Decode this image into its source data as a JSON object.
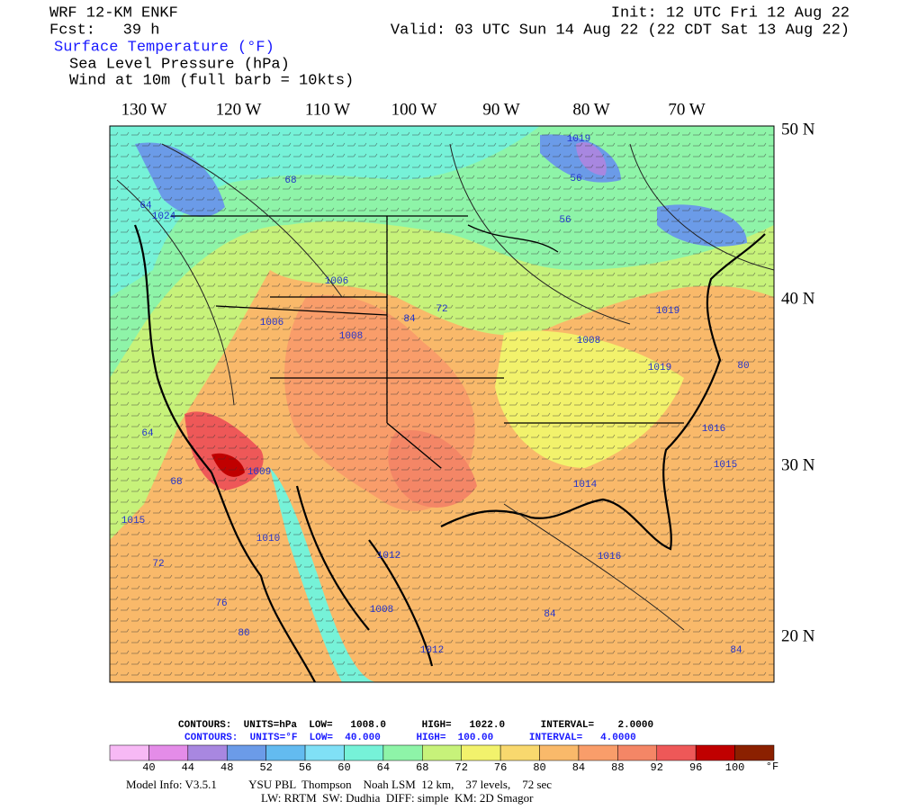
{
  "header": {
    "model": "WRF 12-KM ENKF",
    "forecast": "Fcst:   39 h",
    "init": "Init: 12 UTC Fri 12 Aug 22",
    "valid": "Valid: 03 UTC Sun 14 Aug 22 (22 CDT Sat 13 Aug 22)",
    "fields": [
      "Surface Temperature (°F)",
      "Sea Level Pressure (hPa)",
      "Wind at 10m (full barb = 10kts)"
    ]
  },
  "map": {
    "longitude_labels": [
      "130 W",
      "120 W",
      "110 W",
      "100 W",
      "90 W",
      "80 W",
      "70 W"
    ],
    "latitude_labels": [
      "50 N",
      "40 N",
      "30 N",
      "20 N"
    ],
    "labels": [
      "68",
      "64",
      "1024",
      "1006",
      "1006",
      "1008",
      "1008",
      "1019",
      "1019",
      "1016",
      "1015",
      "1014",
      "1016",
      "1012",
      "1008",
      "1012",
      "1015",
      "1009",
      "1010",
      "80",
      "76",
      "72",
      "68",
      "64",
      "84",
      "84",
      "56",
      "56",
      "1019",
      "84",
      "72",
      "80"
    ]
  },
  "contours": {
    "pressure": "CONTOURS:  UNITS=hPa  LOW=   1008.0      HIGH=   1022.0      INTERVAL=    2.0000",
    "temperature": "CONTOURS:  UNITS=°F  LOW=  40.000      HIGH=  100.00      INTERVAL=   4.0000"
  },
  "colorbar": {
    "labels": [
      "40",
      "44",
      "48",
      "52",
      "56",
      "60",
      "64",
      "68",
      "72",
      "76",
      "80",
      "84",
      "88",
      "92",
      "96",
      "100"
    ],
    "unit": "°F"
  },
  "footer": [
    "Model Info: V3.5.1           YSU PBL  Thompson    Noah LSM  12 km,    37 levels,    72 sec",
    "LW: RRTM  SW: Dudhia  DIFF: simple  KM: 2D Smagor"
  ]
}
